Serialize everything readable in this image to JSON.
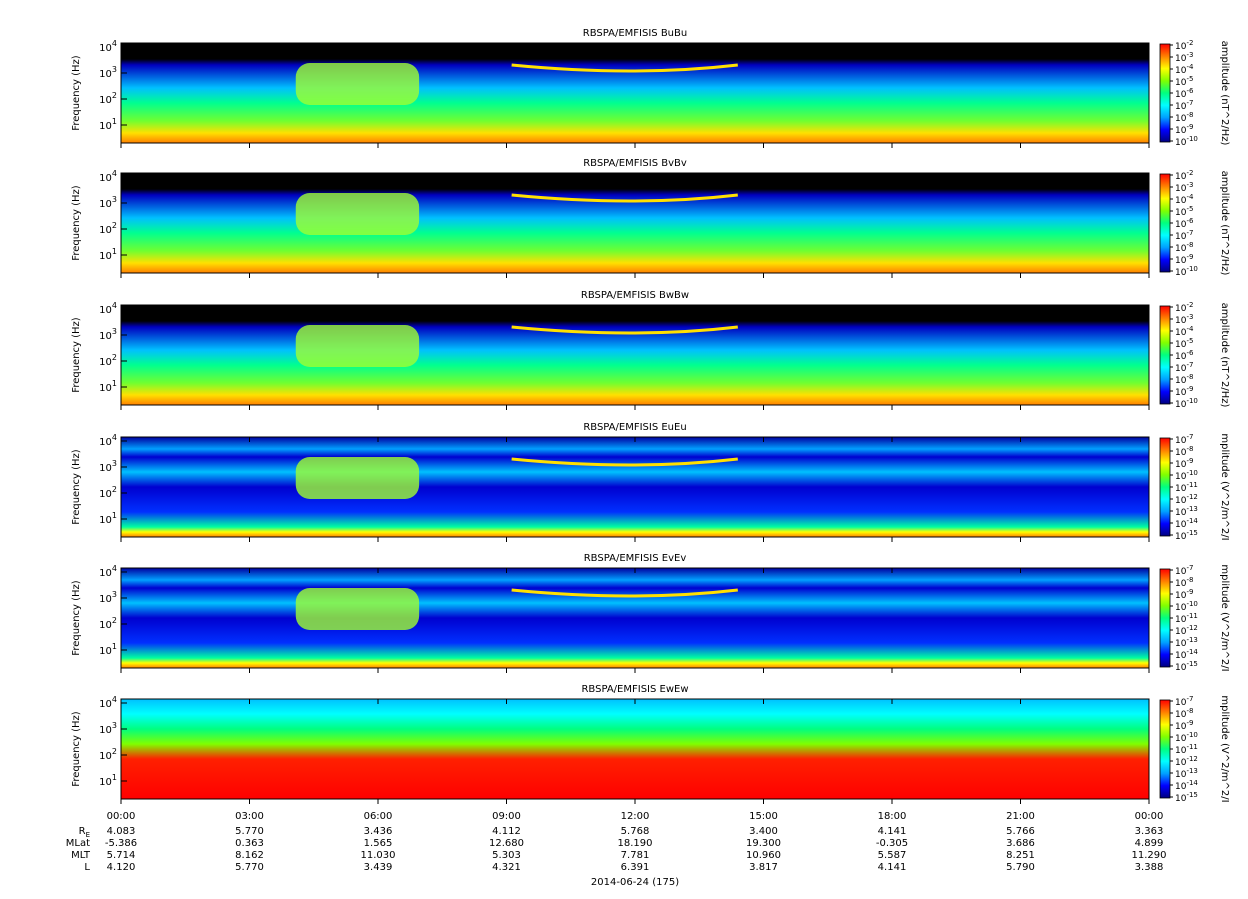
{
  "chart_data": {
    "type": "heatmap",
    "x_axis": {
      "ticks": [
        "00:00",
        "03:00",
        "06:00",
        "09:00",
        "12:00",
        "15:00",
        "18:00",
        "21:00",
        "00:00"
      ],
      "date_label": "2014-06-24 (175)",
      "range_hours": [
        0,
        24
      ]
    },
    "y_axis": {
      "label": "Frequency (Hz)",
      "scale": "log",
      "ticks": [
        "10",
        "10",
        "10",
        "10"
      ],
      "tick_exponents": [
        "1",
        "2",
        "3",
        "4"
      ]
    },
    "panels": [
      {
        "title": "RBSPA/EMFISIS  BuBu",
        "colorbar_label": "amplitude (nT^2/Hz)",
        "colorbar_ticks": [
          "-2",
          "-3",
          "-4",
          "-5",
          "-6",
          "-7",
          "-8",
          "-9",
          "-10"
        ],
        "kind": "B"
      },
      {
        "title": "RBSPA/EMFISIS  BvBv",
        "colorbar_label": "amplitude (nT^2/Hz)",
        "colorbar_ticks": [
          "-2",
          "-3",
          "-4",
          "-5",
          "-6",
          "-7",
          "-8",
          "-9",
          "-10"
        ],
        "kind": "B"
      },
      {
        "title": "RBSPA/EMFISIS  BwBw",
        "colorbar_label": "amplitude (nT^2/Hz)",
        "colorbar_ticks": [
          "-2",
          "-3",
          "-4",
          "-5",
          "-6",
          "-7",
          "-8",
          "-9",
          "-10"
        ],
        "kind": "B"
      },
      {
        "title": "RBSPA/EMFISIS  EuEu",
        "colorbar_label": "mplitude (V^2/m^2/I",
        "colorbar_ticks": [
          "-7",
          "-8",
          "-9",
          "-10",
          "-11",
          "-12",
          "-13",
          "-14",
          "-15"
        ],
        "kind": "E"
      },
      {
        "title": "RBSPA/EMFISIS  EvEv",
        "colorbar_label": "mplitude (V^2/m^2/I",
        "colorbar_ticks": [
          "-7",
          "-8",
          "-9",
          "-10",
          "-11",
          "-12",
          "-13",
          "-14",
          "-15"
        ],
        "kind": "E"
      },
      {
        "title": "RBSPA/EMFISIS  EwEw",
        "colorbar_label": "mplitude (V^2/m^2/I",
        "colorbar_ticks": [
          "-7",
          "-8",
          "-9",
          "-10",
          "-11",
          "-12",
          "-13",
          "-14",
          "-15"
        ],
        "kind": "Ew"
      }
    ],
    "ephemeris": {
      "rows": [
        {
          "label": "R",
          "sub": "E",
          "values": [
            "4.083",
            "5.770",
            "3.436",
            "4.112",
            "5.768",
            "3.400",
            "4.141",
            "5.766",
            "3.363"
          ]
        },
        {
          "label": "MLat",
          "sub": "",
          "values": [
            "-5.386",
            "0.363",
            "1.565",
            "12.680",
            "18.190",
            "19.300",
            "-0.305",
            "3.686",
            "4.899"
          ]
        },
        {
          "label": "MLT",
          "sub": "",
          "values": [
            "5.714",
            "8.162",
            "11.030",
            "5.303",
            "7.781",
            "10.960",
            "5.587",
            "8.251",
            "11.290"
          ]
        },
        {
          "label": "L",
          "sub": "",
          "values": [
            "4.120",
            "5.770",
            "3.439",
            "4.321",
            "6.391",
            "3.817",
            "4.141",
            "5.790",
            "3.388"
          ]
        }
      ]
    },
    "colormap": [
      "#000080",
      "#0000ff",
      "#00a0ff",
      "#00ffff",
      "#00ff80",
      "#80ff00",
      "#ffff00",
      "#ff8000",
      "#ff0000"
    ]
  }
}
